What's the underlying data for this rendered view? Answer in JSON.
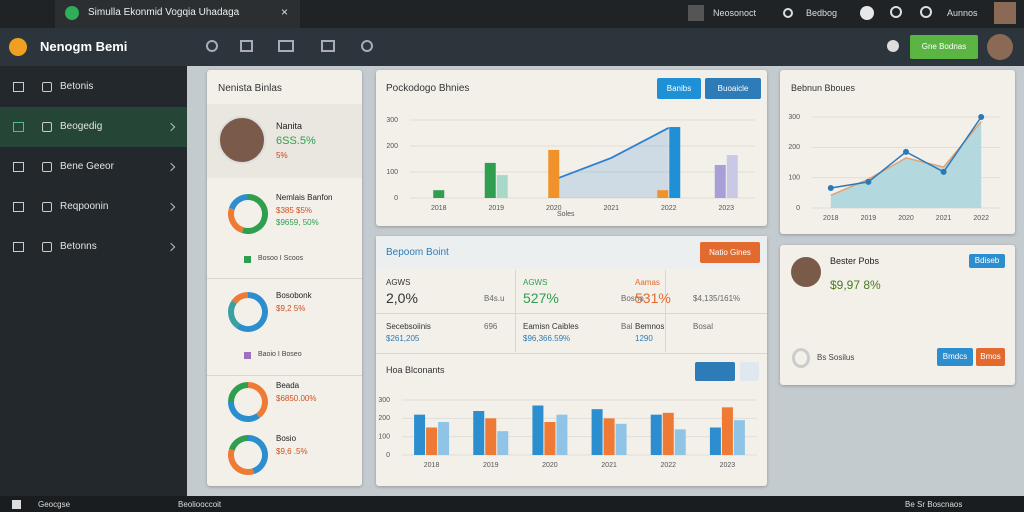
{
  "browser": {
    "tab_title": "Simulla Ekonmid Vogqia Uhadaga",
    "close": "×",
    "app_label": "Neosonoct",
    "search": "Bedbog",
    "user": "Aunnos"
  },
  "header": {
    "logo": "Nenogm Bemi",
    "button": "Gne Bodnas"
  },
  "sidebar": {
    "items": [
      "Betonis",
      "Beogedig",
      "Bene Geeor",
      "Reqpoonin",
      "Betonns"
    ],
    "active": 1
  },
  "left_panel": {
    "title": "Nenista Binlas",
    "profile": {
      "name": "Nanita",
      "value": "6SS.5%",
      "change": "5%"
    },
    "legends": [
      "Bosoo I Scoos",
      "Baoio I Boseo"
    ]
  },
  "top_panel": {
    "title": "Pockodogo Bhnies",
    "buttons": [
      "Banibs",
      "Buoaicle"
    ],
    "x_title": "Soles"
  },
  "report": {
    "title": "Bepoom Boint",
    "button": "Natio Gines",
    "stats": [
      [
        {
          "label": "AGWS",
          "value": "2,0%",
          "note": "B4s.u"
        },
        {
          "label": "AGWS",
          "value": "527%",
          "note": "Bosno"
        },
        {
          "label": "Aamas",
          "value": "531%",
          "note": "$4,135/161%"
        }
      ],
      [
        {
          "label": "Secebsoiinis",
          "value": "$261,205",
          "note": "696"
        },
        {
          "label": "Eamisn Caibles",
          "value": "$96,366.59%",
          "note": "Bal"
        },
        {
          "label": "Bemnos",
          "value": "1290",
          "note": "Bosal"
        }
      ]
    ],
    "sub_title": "Hoa Blconants"
  },
  "right_panel": {
    "title": "Bebnun Bboues"
  },
  "profile_card": {
    "name": "Bester Pobs",
    "value": "$9,97 8%",
    "button": "Bdiseb",
    "toggle_label": "Bs Sosilus",
    "buttons": [
      "Bmdcs",
      "Bmos"
    ]
  },
  "taskbar": [
    "Geocgse",
    "Beoliooccoit",
    "Be Sr Boscnaos"
  ],
  "chart_data": [
    {
      "type": "bar",
      "categories": [
        "2018",
        "2019",
        "2020",
        "2021",
        "2022",
        "2023"
      ],
      "ylim": [
        0,
        300
      ],
      "yticks": [
        0,
        100,
        200,
        300
      ],
      "grid": true,
      "series": [
        {
          "color": "#2f9e4f",
          "values": [
            30,
            135,
            null,
            null,
            null,
            null
          ]
        },
        {
          "color": "#a8d8c8",
          "values": [
            null,
            88,
            null,
            null,
            null,
            null
          ]
        },
        {
          "color": "#f0922b",
          "values": [
            null,
            null,
            185,
            null,
            30,
            null
          ]
        },
        {
          "color": "#1f8fd6",
          "values": [
            null,
            null,
            null,
            null,
            273,
            null
          ]
        },
        {
          "color": "#a99fd8",
          "values": [
            null,
            null,
            null,
            null,
            null,
            127
          ]
        },
        {
          "color": "#c9c9e6",
          "values": [
            null,
            null,
            null,
            null,
            null,
            165
          ]
        },
        {
          "color": "#2c7fd0",
          "type": "area",
          "values": [
            null,
            null,
            70,
            154,
            270,
            null
          ]
        }
      ]
    },
    {
      "type": "line",
      "categories": [
        "2018",
        "2019",
        "2020",
        "2021",
        "2022"
      ],
      "ylim": [
        0,
        300
      ],
      "yticks": [
        0,
        100,
        200,
        300
      ],
      "grid": true,
      "series": [
        {
          "color": "#e8a070",
          "fill": "#a8d4dc",
          "values": [
            42,
            95,
            165,
            135,
            285
          ]
        },
        {
          "color": "#2a79b8",
          "markers": true,
          "values": [
            66,
            86,
            185,
            119,
            300
          ]
        }
      ]
    },
    {
      "type": "bar",
      "categories": [
        "2018",
        "2019",
        "2020",
        "2021",
        "2022",
        "2023"
      ],
      "ylim": [
        0,
        300
      ],
      "yticks": [
        0,
        100,
        200,
        300
      ],
      "grid": true,
      "series": [
        {
          "color": "#2d8ecf",
          "values": [
            220,
            240,
            270,
            250,
            220,
            150
          ]
        },
        {
          "color": "#ee7a35",
          "values": [
            150,
            200,
            180,
            200,
            230,
            260
          ]
        },
        {
          "color": "#8fc4e6",
          "values": [
            180,
            130,
            220,
            170,
            140,
            190
          ]
        }
      ]
    },
    {
      "type": "pie",
      "title": "Nemlais Banfon",
      "annotations": [
        "$385 $5%",
        "$9659, 50%"
      ],
      "values": [
        55,
        25,
        20
      ],
      "colors": [
        "#2f9e4f",
        "#ee7a35",
        "#2d8ecf"
      ]
    },
    {
      "type": "pie",
      "title": "Bosobonk",
      "annotations": [
        "$9,2 5%"
      ],
      "values": [
        60,
        25,
        15
      ],
      "colors": [
        "#2d8ecf",
        "#3aa0a0",
        "#ee7a35"
      ]
    },
    {
      "type": "pie",
      "title": "Beada",
      "annotations": [
        "$6850.00%"
      ],
      "values": [
        40,
        35,
        25
      ],
      "colors": [
        "#ee7a35",
        "#2d8ecf",
        "#2f9e4f"
      ]
    },
    {
      "type": "pie",
      "title": "Bosio",
      "annotations": [
        "$9,6 .5%"
      ],
      "values": [
        45,
        35,
        20
      ],
      "colors": [
        "#2d8ecf",
        "#ee7a35",
        "#2f9e4f"
      ]
    }
  ]
}
